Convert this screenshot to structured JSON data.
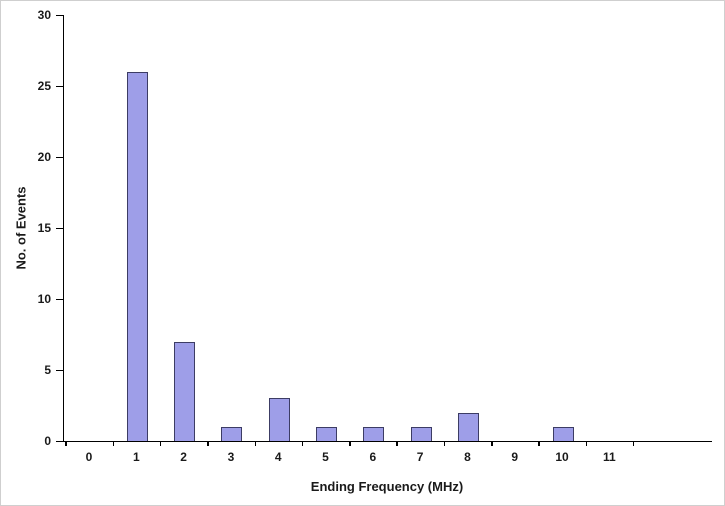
{
  "chart_data": {
    "type": "bar",
    "title": "",
    "categories": [
      "0",
      "1",
      "2",
      "3",
      "4",
      "5",
      "6",
      "7",
      "8",
      "9",
      "10",
      "11"
    ],
    "values": [
      0,
      26,
      7,
      1,
      3,
      1,
      1,
      1,
      2,
      0,
      1,
      0
    ],
    "xlabel": "Ending Frequency (MHz)",
    "ylabel": "No. of Events",
    "ylim": [
      0,
      30
    ],
    "yticks": [
      0,
      5,
      10,
      15,
      20,
      25,
      30
    ],
    "grid": false,
    "legend": "none",
    "colors": {
      "bar_fill": "#9e9ee8",
      "bar_stroke": "#3c3c64",
      "axis": "#000000",
      "text": "#1a1a1a"
    }
  }
}
